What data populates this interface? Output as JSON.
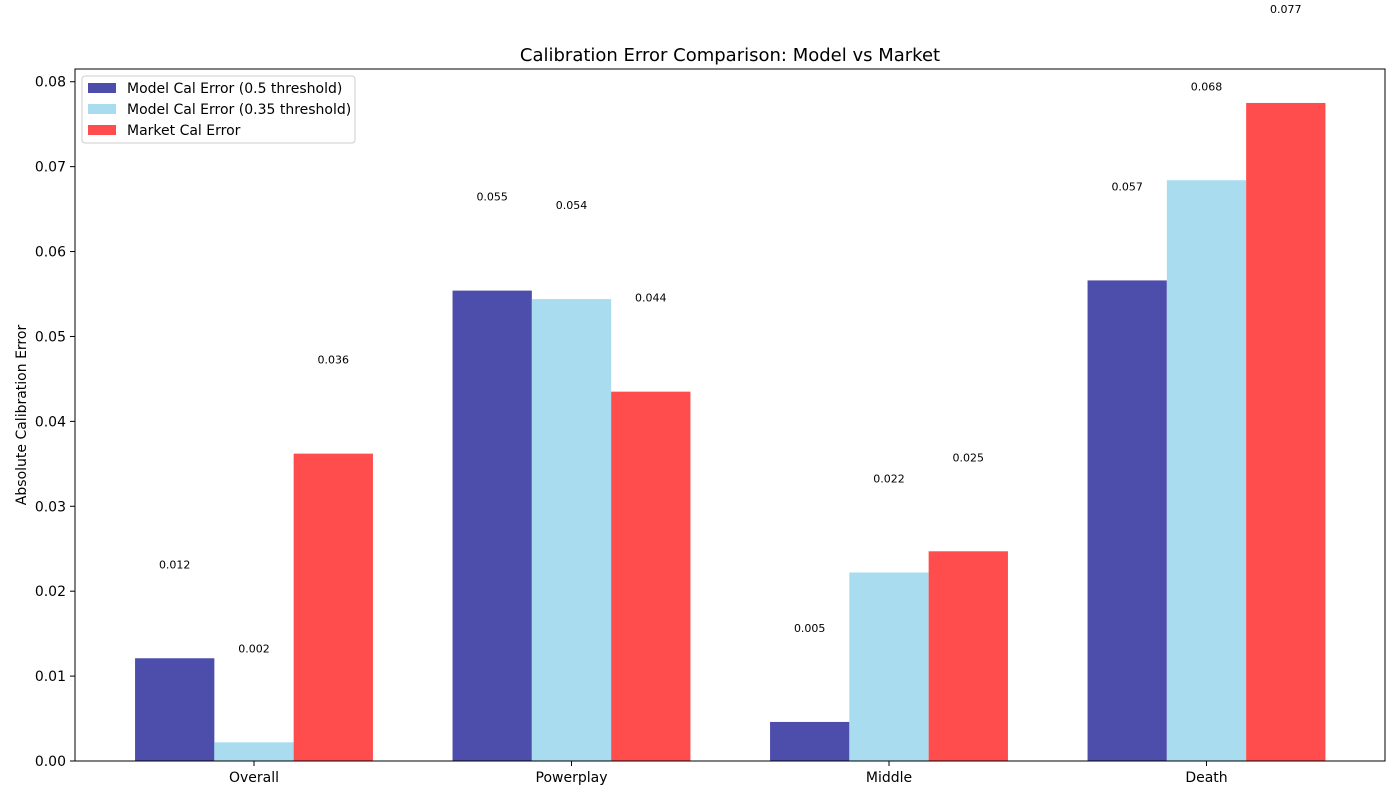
{
  "chart_data": {
    "type": "bar",
    "title": "Calibration Error Comparison: Model vs Market",
    "xlabel": "",
    "ylabel": "Absolute Calibration Error",
    "categories": [
      "Overall",
      "Powerplay",
      "Middle",
      "Death"
    ],
    "ylim": [
      0,
      0.0815
    ],
    "yticks": [
      "0.00",
      "0.01",
      "0.02",
      "0.03",
      "0.04",
      "0.05",
      "0.06",
      "0.07",
      "0.08"
    ],
    "legend_position": "top-left",
    "grid": false,
    "series": [
      {
        "name": "Model Cal Error (0.5 threshold)",
        "color": "#4d4dab",
        "values": [
          0.0121,
          0.0554,
          0.0046,
          0.0566
        ],
        "labels": [
          "0.012",
          "0.055",
          "0.005",
          "0.057"
        ]
      },
      {
        "name": "Model Cal Error (0.35 threshold)",
        "color": "#a8dcee",
        "values": [
          0.0022,
          0.0544,
          0.0222,
          0.0684
        ],
        "labels": [
          "0.002",
          "0.054",
          "0.022",
          "0.068"
        ]
      },
      {
        "name": "Market Cal Error",
        "color": "#ff4c4c",
        "values": [
          0.0362,
          0.0435,
          0.0247,
          0.0775
        ],
        "labels": [
          "0.036",
          "0.044",
          "0.025",
          "0.077"
        ]
      }
    ]
  }
}
